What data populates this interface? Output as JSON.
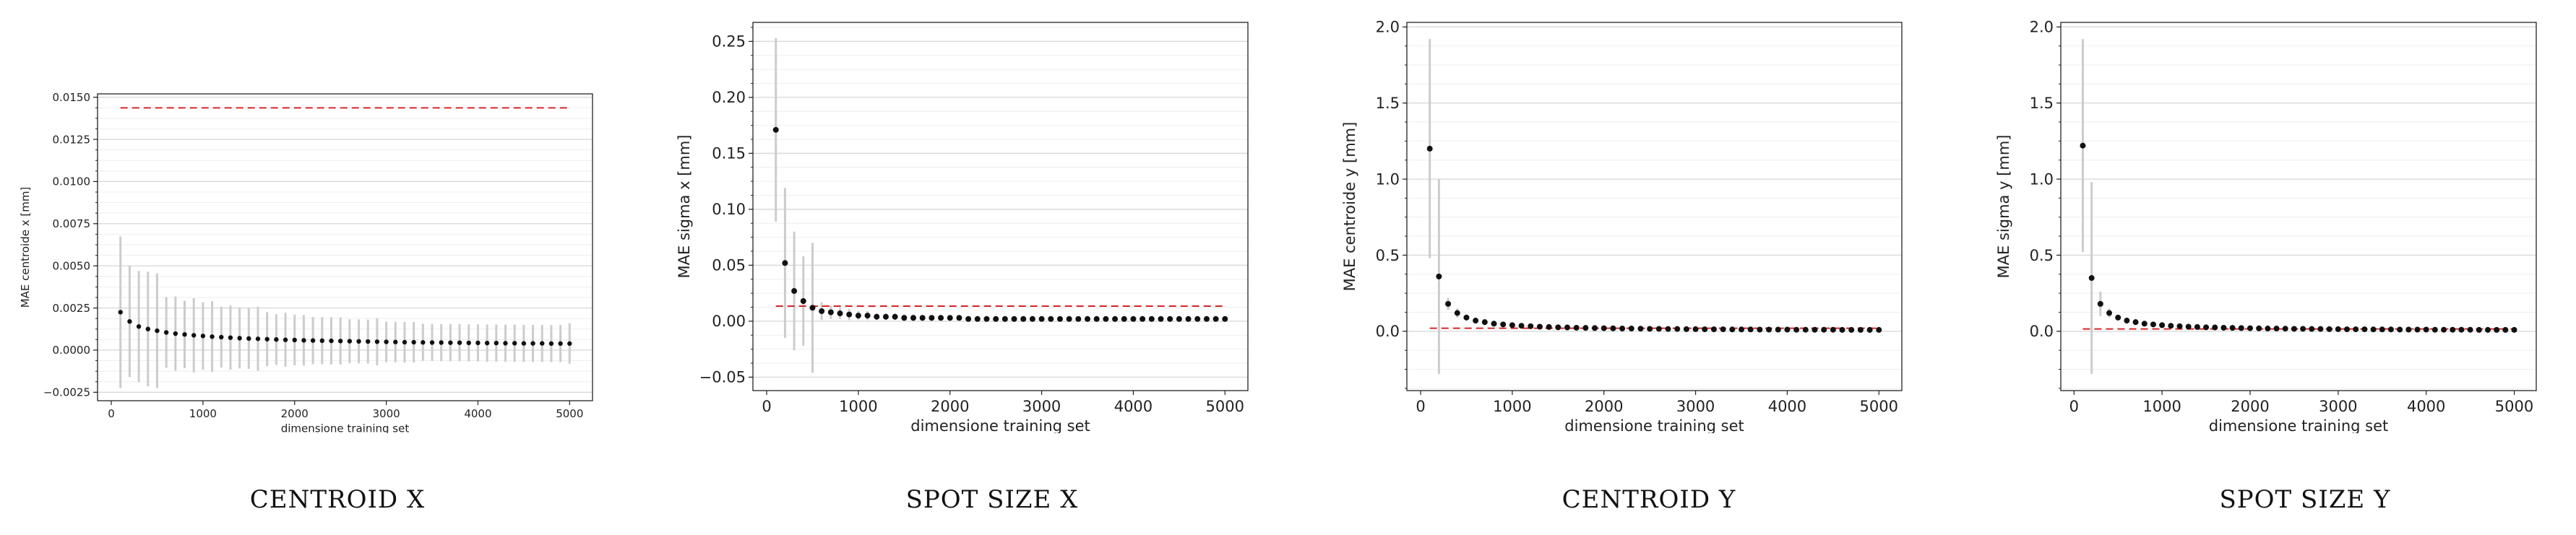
{
  "panels": [
    {
      "caption": "CENTROID X"
    },
    {
      "caption": "SPOT SIZE X"
    },
    {
      "caption": "CENTROID Y"
    },
    {
      "caption": "SPOT SIZE Y"
    }
  ],
  "chart_data": [
    {
      "type": "scatter",
      "title": "",
      "xlabel": "dimensione training set",
      "ylabel": "MAE centroide x [mm]",
      "xlim": [
        -150,
        5250
      ],
      "ylim": [
        -0.003,
        0.0152
      ],
      "xticks": [
        0,
        1000,
        2000,
        3000,
        4000,
        5000
      ],
      "xtick_labels": [
        "0",
        "1000",
        "2000",
        "3000",
        "4000",
        "5000"
      ],
      "yticks": [
        -0.0025,
        0,
        0.0025,
        0.005,
        0.0075,
        0.01,
        0.0125,
        0.015
      ],
      "ytick_labels": [
        "−0.0025",
        "0.0000",
        "0.0025",
        "0.0050",
        "0.0075",
        "0.0100",
        "0.0125",
        "0.0150"
      ],
      "grid": true,
      "x": [
        100,
        200,
        300,
        400,
        500,
        600,
        700,
        800,
        900,
        1000,
        1100,
        1200,
        1300,
        1400,
        1500,
        1600,
        1700,
        1800,
        1900,
        2000,
        2100,
        2200,
        2300,
        2400,
        2500,
        2600,
        2700,
        2800,
        2900,
        3000,
        3100,
        3200,
        3300,
        3400,
        3500,
        3600,
        3700,
        3800,
        3900,
        4000,
        4100,
        4200,
        4300,
        4400,
        4500,
        4600,
        4700,
        4800,
        4900,
        5000
      ],
      "series": [
        {
          "values": [
            0.00225,
            0.0017,
            0.0014,
            0.00125,
            0.00115,
            0.00105,
            0.00098,
            0.00093,
            0.00088,
            0.00084,
            0.0008,
            0.00077,
            0.00074,
            0.00071,
            0.00069,
            0.00067,
            0.00065,
            0.00063,
            0.00061,
            0.0006,
            0.00058,
            0.00057,
            0.00056,
            0.00055,
            0.00054,
            0.00053,
            0.00052,
            0.00051,
            0.0005,
            0.00049,
            0.00048,
            0.00047,
            0.00047,
            0.00046,
            0.00045,
            0.00045,
            0.00044,
            0.00044,
            0.00043,
            0.00043,
            0.00042,
            0.00042,
            0.00041,
            0.00041,
            0.0004,
            0.0004,
            0.0004,
            0.00039,
            0.00039,
            0.00039
          ],
          "errors": [
            0.0045,
            0.0033,
            0.0033,
            0.0034,
            0.0034,
            0.0021,
            0.0022,
            0.002,
            0.0022,
            0.002,
            0.0021,
            0.0018,
            0.0019,
            0.0018,
            0.0018,
            0.0019,
            0.0016,
            0.0015,
            0.0016,
            0.0015,
            0.0015,
            0.0014,
            0.0014,
            0.0014,
            0.0014,
            0.0013,
            0.0013,
            0.0013,
            0.0014,
            0.0012,
            0.0012,
            0.0012,
            0.0012,
            0.0011,
            0.0011,
            0.0011,
            0.0011,
            0.0011,
            0.0011,
            0.0011,
            0.0011,
            0.0011,
            0.0011,
            0.0011,
            0.0011,
            0.0011,
            0.0011,
            0.0011,
            0.0011,
            0.0012
          ]
        }
      ],
      "reference_line": {
        "value": 0.01437,
        "from_x": 100,
        "to_x": 5000,
        "color": "#d62728",
        "style": "dashed"
      }
    },
    {
      "type": "scatter",
      "title": "",
      "xlabel": "dimensione training set",
      "ylabel": "MAE sigma x [mm]",
      "xlim": [
        -150,
        5250
      ],
      "ylim": [
        -0.062,
        0.267
      ],
      "xticks": [
        0,
        1000,
        2000,
        3000,
        4000,
        5000
      ],
      "xtick_labels": [
        "0",
        "1000",
        "2000",
        "3000",
        "4000",
        "5000"
      ],
      "yticks": [
        -0.05,
        0,
        0.05,
        0.1,
        0.15,
        0.2,
        0.25
      ],
      "ytick_labels": [
        "−0.05",
        "0.00",
        "0.05",
        "0.10",
        "0.15",
        "0.20",
        "0.25"
      ],
      "grid": true,
      "x": [
        100,
        200,
        300,
        400,
        500,
        600,
        700,
        800,
        900,
        1000,
        1100,
        1200,
        1300,
        1400,
        1500,
        1600,
        1700,
        1800,
        1900,
        2000,
        2100,
        2200,
        2300,
        2400,
        2500,
        2600,
        2700,
        2800,
        2900,
        3000,
        3100,
        3200,
        3300,
        3400,
        3500,
        3600,
        3700,
        3800,
        3900,
        4000,
        4100,
        4200,
        4300,
        4400,
        4500,
        4600,
        4700,
        4800,
        4900,
        5000
      ],
      "series": [
        {
          "values": [
            0.171,
            0.052,
            0.027,
            0.018,
            0.012,
            0.009,
            0.008,
            0.007,
            0.006,
            0.005,
            0.005,
            0.004,
            0.004,
            0.004,
            0.003,
            0.003,
            0.003,
            0.003,
            0.003,
            0.003,
            0.003,
            0.002,
            0.002,
            0.002,
            0.002,
            0.002,
            0.002,
            0.002,
            0.002,
            0.002,
            0.002,
            0.002,
            0.002,
            0.002,
            0.002,
            0.002,
            0.002,
            0.002,
            0.002,
            0.002,
            0.002,
            0.002,
            0.002,
            0.002,
            0.002,
            0.002,
            0.002,
            0.002,
            0.002,
            0.002
          ],
          "errors": [
            0.082,
            0.067,
            0.053,
            0.04,
            0.058,
            0.008,
            0.006,
            0.005,
            0.005,
            0.004,
            0.004,
            0.003,
            0.003,
            0.003,
            0.003,
            0.003,
            0.002,
            0.002,
            0.002,
            0.002,
            0.002,
            0.002,
            0.002,
            0.002,
            0.002,
            0.002,
            0.002,
            0.002,
            0.002,
            0.002,
            0.002,
            0.002,
            0.002,
            0.002,
            0.002,
            0.002,
            0.002,
            0.002,
            0.002,
            0.002,
            0.002,
            0.002,
            0.002,
            0.002,
            0.002,
            0.002,
            0.002,
            0.002,
            0.002,
            0.002
          ]
        }
      ],
      "reference_line": {
        "value": 0.0135,
        "from_x": 100,
        "to_x": 5000,
        "color": "#d62728",
        "style": "dashed"
      }
    },
    {
      "type": "scatter",
      "title": "",
      "xlabel": "dimensione training set",
      "ylabel": "MAE centroide y [mm]",
      "xlim": [
        -150,
        5250
      ],
      "ylim": [
        -0.39,
        2.03
      ],
      "xticks": [
        0,
        1000,
        2000,
        3000,
        4000,
        5000
      ],
      "xtick_labels": [
        "0",
        "1000",
        "2000",
        "3000",
        "4000",
        "5000"
      ],
      "yticks": [
        0,
        0.5,
        1,
        1.5,
        2
      ],
      "ytick_labels": [
        "0.0",
        "0.5",
        "1.0",
        "1.5",
        "2.0"
      ],
      "grid": true,
      "x": [
        100,
        200,
        300,
        400,
        500,
        600,
        700,
        800,
        900,
        1000,
        1100,
        1200,
        1300,
        1400,
        1500,
        1600,
        1700,
        1800,
        1900,
        2000,
        2100,
        2200,
        2300,
        2400,
        2500,
        2600,
        2700,
        2800,
        2900,
        3000,
        3100,
        3200,
        3300,
        3400,
        3500,
        3600,
        3700,
        3800,
        3900,
        4000,
        4100,
        4200,
        4300,
        4400,
        4500,
        4600,
        4700,
        4800,
        4900,
        5000
      ],
      "series": [
        {
          "values": [
            1.2,
            0.36,
            0.18,
            0.12,
            0.09,
            0.07,
            0.06,
            0.05,
            0.045,
            0.04,
            0.036,
            0.033,
            0.03,
            0.028,
            0.026,
            0.025,
            0.023,
            0.022,
            0.021,
            0.02,
            0.019,
            0.018,
            0.018,
            0.017,
            0.016,
            0.016,
            0.015,
            0.015,
            0.014,
            0.014,
            0.013,
            0.013,
            0.013,
            0.012,
            0.012,
            0.012,
            0.011,
            0.011,
            0.011,
            0.011,
            0.01,
            0.01,
            0.01,
            0.01,
            0.01,
            0.009,
            0.009,
            0.009,
            0.009,
            0.009
          ],
          "errors": [
            0.72,
            0.64,
            0.04,
            0.03,
            0.02,
            0.02,
            0.02,
            0.015,
            0.015,
            0.012,
            0.012,
            0.01,
            0.01,
            0.01,
            0.01,
            0.01,
            0.01,
            0.01,
            0.01,
            0.01,
            0.01,
            0.01,
            0.01,
            0.01,
            0.01,
            0.01,
            0.01,
            0.01,
            0.01,
            0.01,
            0.01,
            0.01,
            0.01,
            0.01,
            0.01,
            0.01,
            0.01,
            0.01,
            0.01,
            0.01,
            0.01,
            0.01,
            0.01,
            0.01,
            0.01,
            0.01,
            0.01,
            0.01,
            0.01,
            0.01
          ]
        }
      ],
      "reference_line": {
        "value": 0.02,
        "from_x": 100,
        "to_x": 5000,
        "color": "#d62728",
        "style": "dashed"
      }
    },
    {
      "type": "scatter",
      "title": "",
      "xlabel": "dimensione training set",
      "ylabel": "MAE sigma y [mm]",
      "xlim": [
        -150,
        5250
      ],
      "ylim": [
        -0.39,
        2.03
      ],
      "xticks": [
        0,
        1000,
        2000,
        3000,
        4000,
        5000
      ],
      "xtick_labels": [
        "0",
        "1000",
        "2000",
        "3000",
        "4000",
        "5000"
      ],
      "yticks": [
        0,
        0.5,
        1,
        1.5,
        2
      ],
      "ytick_labels": [
        "0.0",
        "0.5",
        "1.0",
        "1.5",
        "2.0"
      ],
      "grid": true,
      "x": [
        100,
        200,
        300,
        400,
        500,
        600,
        700,
        800,
        900,
        1000,
        1100,
        1200,
        1300,
        1400,
        1500,
        1600,
        1700,
        1800,
        1900,
        2000,
        2100,
        2200,
        2300,
        2400,
        2500,
        2600,
        2700,
        2800,
        2900,
        3000,
        3100,
        3200,
        3300,
        3400,
        3500,
        3600,
        3700,
        3800,
        3900,
        4000,
        4100,
        4200,
        4300,
        4400,
        4500,
        4600,
        4700,
        4800,
        4900,
        5000
      ],
      "series": [
        {
          "values": [
            1.22,
            0.35,
            0.18,
            0.12,
            0.09,
            0.07,
            0.06,
            0.05,
            0.045,
            0.04,
            0.036,
            0.033,
            0.03,
            0.028,
            0.026,
            0.025,
            0.023,
            0.022,
            0.021,
            0.02,
            0.019,
            0.018,
            0.018,
            0.017,
            0.016,
            0.016,
            0.015,
            0.015,
            0.014,
            0.014,
            0.013,
            0.013,
            0.013,
            0.012,
            0.012,
            0.012,
            0.011,
            0.011,
            0.011,
            0.011,
            0.01,
            0.01,
            0.01,
            0.01,
            0.01,
            0.009,
            0.009,
            0.009,
            0.009,
            0.009
          ],
          "errors": [
            0.7,
            0.63,
            0.08,
            0.03,
            0.02,
            0.02,
            0.02,
            0.015,
            0.015,
            0.012,
            0.012,
            0.01,
            0.01,
            0.01,
            0.01,
            0.01,
            0.01,
            0.01,
            0.01,
            0.01,
            0.01,
            0.01,
            0.01,
            0.01,
            0.01,
            0.01,
            0.01,
            0.01,
            0.01,
            0.01,
            0.01,
            0.01,
            0.01,
            0.01,
            0.01,
            0.01,
            0.01,
            0.01,
            0.01,
            0.01,
            0.01,
            0.01,
            0.01,
            0.01,
            0.01,
            0.01,
            0.01,
            0.01,
            0.01,
            0.01
          ]
        }
      ],
      "reference_line": {
        "value": 0.015,
        "from_x": 100,
        "to_x": 5000,
        "color": "#d62728",
        "style": "dashed"
      }
    }
  ]
}
